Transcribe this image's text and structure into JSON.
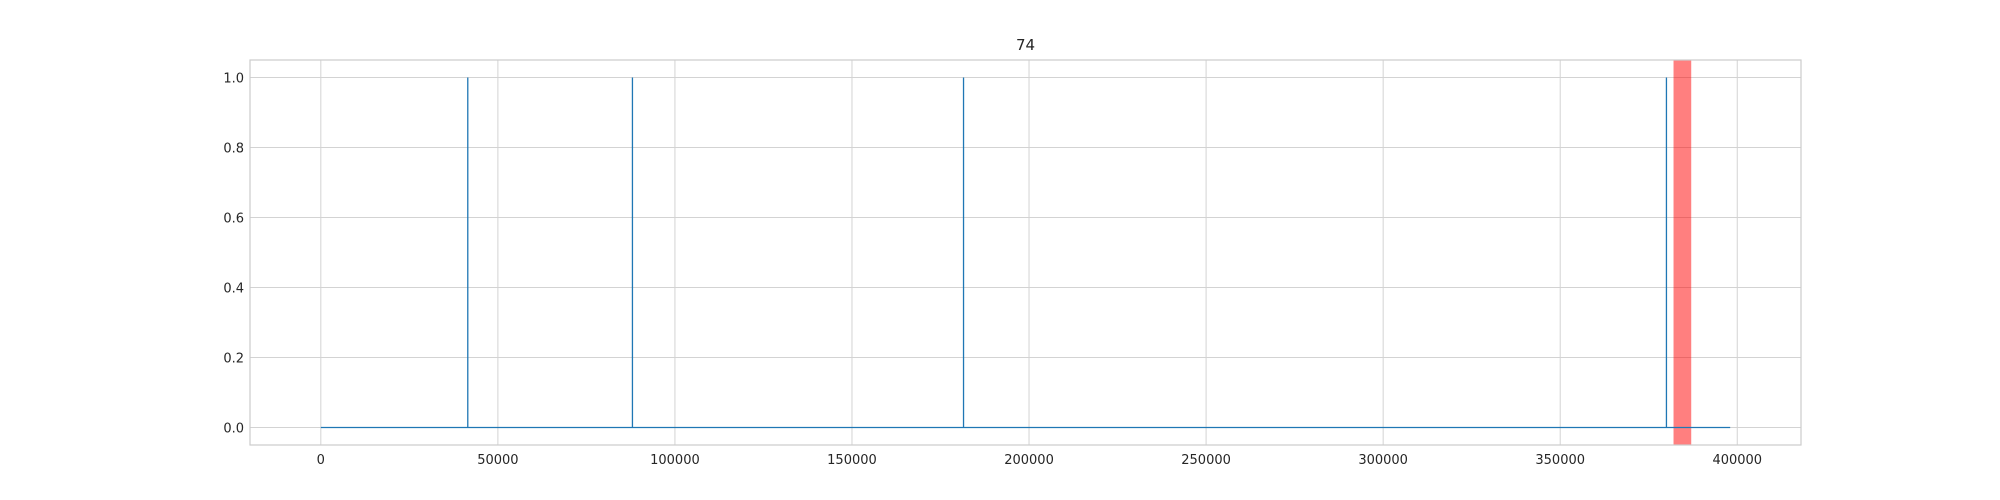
{
  "chart_data": {
    "type": "line",
    "title": "74",
    "xlabel": "",
    "ylabel": "",
    "xlim": [
      -20000,
      418000
    ],
    "ylim": [
      -0.05,
      1.05
    ],
    "x_ticks": [
      0,
      50000,
      100000,
      150000,
      200000,
      250000,
      300000,
      350000,
      400000
    ],
    "x_tick_labels": [
      "0",
      "50000",
      "100000",
      "150000",
      "200000",
      "250000",
      "300000",
      "350000",
      "400000"
    ],
    "y_ticks": [
      0.0,
      0.2,
      0.4,
      0.6,
      0.8,
      1.0
    ],
    "y_tick_labels": [
      "0.0",
      "0.2",
      "0.4",
      "0.6",
      "0.8",
      "1.0"
    ],
    "grid": true,
    "series": [
      {
        "color": "#1f77b4",
        "x": [
          0,
          41500,
          41500,
          41500,
          88000,
          88000,
          88000,
          181500,
          181500,
          181500,
          380000,
          380000,
          380000,
          398000
        ],
        "y": [
          0,
          0,
          1,
          0,
          0,
          1,
          0,
          0,
          1,
          0,
          0,
          1,
          0,
          0
        ]
      }
    ],
    "highlight_spans": [
      {
        "x0": 382000,
        "x1": 387000,
        "color": "#ff0000",
        "alpha": 0.5
      }
    ]
  }
}
